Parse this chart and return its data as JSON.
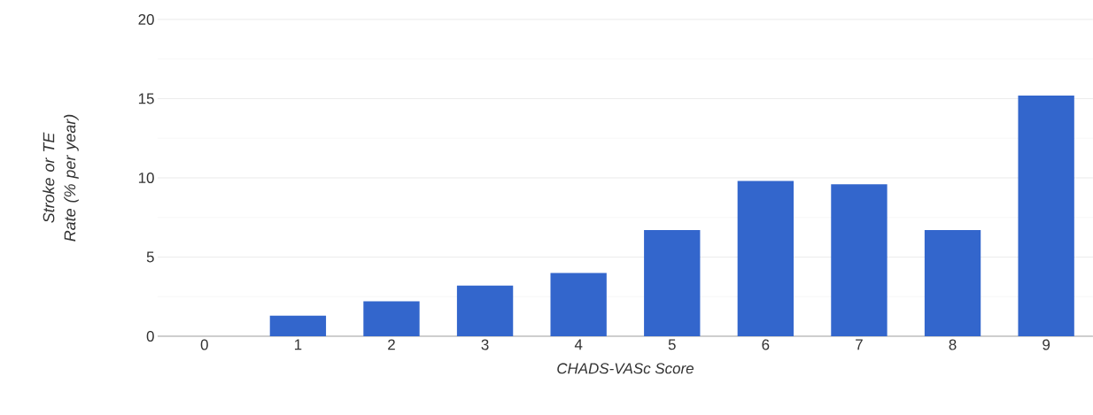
{
  "chart_data": {
    "type": "bar",
    "xlabel": "CHADS-VASc Score",
    "ylabel": "Stroke or TE Rate (% per year)",
    "categories": [
      "0",
      "1",
      "2",
      "3",
      "4",
      "5",
      "6",
      "7",
      "8",
      "9"
    ],
    "values": [
      0,
      1.3,
      2.2,
      3.2,
      4.0,
      6.7,
      9.8,
      9.6,
      6.7,
      15.2
    ],
    "color": "#3366cc",
    "ylim": [
      0,
      20
    ],
    "yticks": [
      0,
      5,
      10,
      15,
      20
    ],
    "grid": "y"
  }
}
